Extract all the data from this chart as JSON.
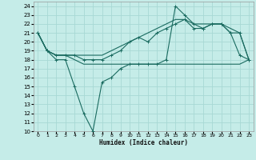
{
  "xlabel": "Humidex (Indice chaleur)",
  "bg_color": "#c5ece8",
  "grid_color": "#a8d8d4",
  "line_color": "#1a6b60",
  "xlim": [
    -0.5,
    23.5
  ],
  "ylim": [
    10,
    24.5
  ],
  "xticks": [
    0,
    1,
    2,
    3,
    4,
    5,
    6,
    7,
    8,
    9,
    10,
    11,
    12,
    13,
    14,
    15,
    16,
    17,
    18,
    19,
    20,
    21,
    22,
    23
  ],
  "yticks": [
    10,
    11,
    12,
    13,
    14,
    15,
    16,
    17,
    18,
    19,
    20,
    21,
    22,
    23,
    24
  ],
  "line_dip_x": [
    0,
    1,
    2,
    3,
    4,
    5,
    6,
    7,
    8,
    9,
    10,
    11,
    12,
    13,
    14,
    15,
    16,
    17,
    18,
    19,
    20,
    21,
    22,
    23
  ],
  "line_dip_y": [
    21,
    19,
    18,
    18,
    15,
    12,
    10,
    15.5,
    16,
    17,
    17.5,
    17.5,
    17.5,
    17.5,
    18,
    24,
    23,
    22,
    21.5,
    22,
    22,
    21,
    18.5,
    18
  ],
  "line_flat_x": [
    0,
    1,
    2,
    3,
    4,
    5,
    6,
    7,
    8,
    9,
    10,
    11,
    12,
    13,
    14,
    15,
    16,
    17,
    18,
    19,
    20,
    21,
    22,
    23
  ],
  "line_flat_y": [
    21,
    19,
    18.5,
    18.5,
    18,
    17.5,
    17.5,
    17.5,
    17.5,
    17.5,
    17.5,
    17.5,
    17.5,
    17.5,
    17.5,
    17.5,
    17.5,
    17.5,
    17.5,
    17.5,
    17.5,
    17.5,
    17.5,
    18
  ],
  "line_rise_x": [
    0,
    1,
    2,
    3,
    4,
    5,
    6,
    7,
    8,
    9,
    10,
    11,
    12,
    13,
    14,
    15,
    16,
    17,
    18,
    19,
    20,
    21,
    22,
    23
  ],
  "line_rise_y": [
    21,
    19,
    18.5,
    18.5,
    18.5,
    18.5,
    18.5,
    18.5,
    19,
    19.5,
    20,
    20.5,
    21,
    21.5,
    22,
    22.5,
    22.5,
    22,
    22,
    22,
    22,
    21.5,
    21,
    18
  ],
  "line_mid_x": [
    0,
    1,
    2,
    3,
    4,
    5,
    6,
    7,
    8,
    9,
    10,
    11,
    12,
    13,
    14,
    15,
    16,
    17,
    18,
    19,
    20,
    21,
    22,
    23
  ],
  "line_mid_y": [
    21,
    19,
    18.5,
    18.5,
    18.5,
    18,
    18,
    18,
    18.5,
    19,
    20,
    20.5,
    20,
    21,
    21.5,
    22,
    22.5,
    21.5,
    21.5,
    22,
    22,
    21,
    21,
    18
  ]
}
